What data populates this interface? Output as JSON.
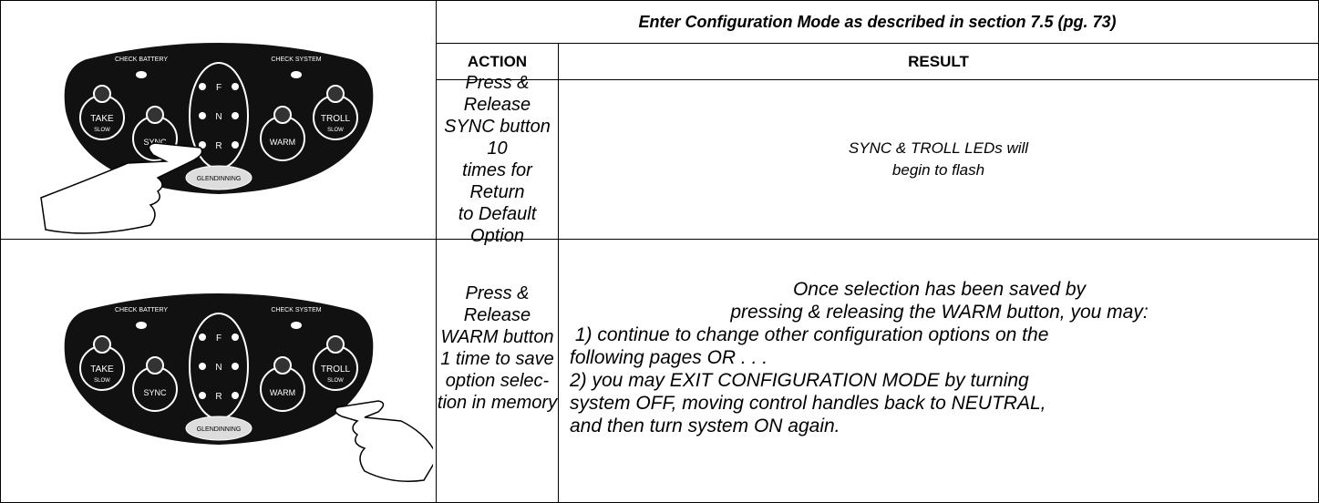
{
  "header": {
    "title": "Enter Configuration Mode as described in section 7.5 (pg. 73)"
  },
  "columns": [
    "ACTION",
    "RESULT"
  ],
  "rows": [
    {
      "panel": {
        "check_battery": "CHECK BATTERY",
        "check_system": "CHECK SYSTEM",
        "take": "TAKE",
        "take_sub": "SLOW",
        "sync": "SYNC",
        "f": "F",
        "n": "N",
        "r": "R",
        "warm": "WARM",
        "troll": "TROLL",
        "troll_sub": "SLOW",
        "brand": "GLENDINNING"
      },
      "action": [
        "Press & Release",
        "SYNC button 10",
        "times for Return",
        "to Default Option"
      ],
      "result": [
        "SYNC & TROLL LEDs will",
        "begin to flash"
      ]
    },
    {
      "panel": {
        "check_battery": "CHECK BATTERY",
        "check_system": "CHECK SYSTEM",
        "take": "TAKE",
        "take_sub": "SLOW",
        "sync": "SYNC",
        "f": "F",
        "n": "N",
        "r": "R",
        "warm": "WARM",
        "troll": "TROLL",
        "troll_sub": "SLOW",
        "brand": "GLENDINNING"
      },
      "action": [
        "Press &",
        "Release",
        "WARM button",
        "1 time to save",
        "option selec-",
        "tion in memory"
      ],
      "result": [
        "Once selection has been saved by",
        "pressing & releasing the WARM button, you may:",
        " 1) continue to change other configuration options on the",
        "following pages OR . . .",
        "2) you may EXIT CONFIGURATION MODE by turning",
        "system OFF, moving control handles back to NEUTRAL,",
        "and then turn system ON again."
      ]
    }
  ]
}
